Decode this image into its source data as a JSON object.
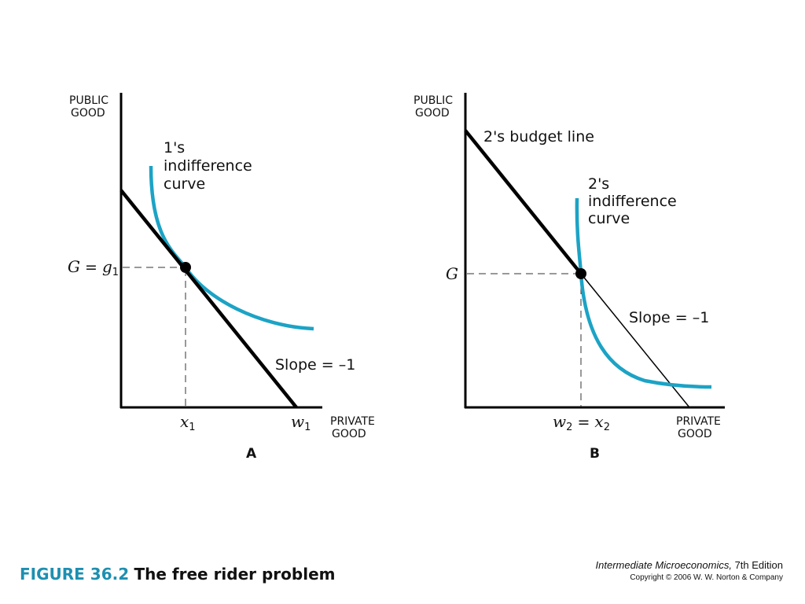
{
  "figure": {
    "number": "FIGURE 36.2",
    "title": "The free rider problem"
  },
  "credit": {
    "book_title": "Intermediate Microeconomics,",
    "edition": " 7th Edition",
    "copyright": "Copyright © 2006 W. W. Norton & Company"
  },
  "panel_a": {
    "id": "A",
    "y_axis_label": [
      "PUBLIC",
      "GOOD"
    ],
    "x_axis_label": [
      "PRIVATE",
      "GOOD"
    ],
    "curve_label": [
      "1's",
      "indifference",
      "curve"
    ],
    "slope_label": "Slope = –1",
    "y_tick_main": "G",
    "y_tick_eq": " = ",
    "y_tick_var": "g",
    "y_tick_sub": "1",
    "x_tick_var": "x",
    "x_tick_sub": "1",
    "x_end_var": "w",
    "x_end_sub": "1"
  },
  "panel_b": {
    "id": "B",
    "y_axis_label": [
      "PUBLIC",
      "GOOD"
    ],
    "x_axis_label": [
      "PRIVATE",
      "GOOD"
    ],
    "budget_label": "2's budget line",
    "curve_label": [
      "2's",
      "indifference",
      "curve"
    ],
    "slope_label": "Slope = –1",
    "y_tick": "G",
    "x_tick_w": "w",
    "x_tick_w_sub": "2",
    "x_tick_eq": " = ",
    "x_tick_x": "x",
    "x_tick_x_sub": "2"
  },
  "colors": {
    "curve": "#1ca3c5",
    "line": "#000000",
    "accent": "#1e8fb0"
  }
}
